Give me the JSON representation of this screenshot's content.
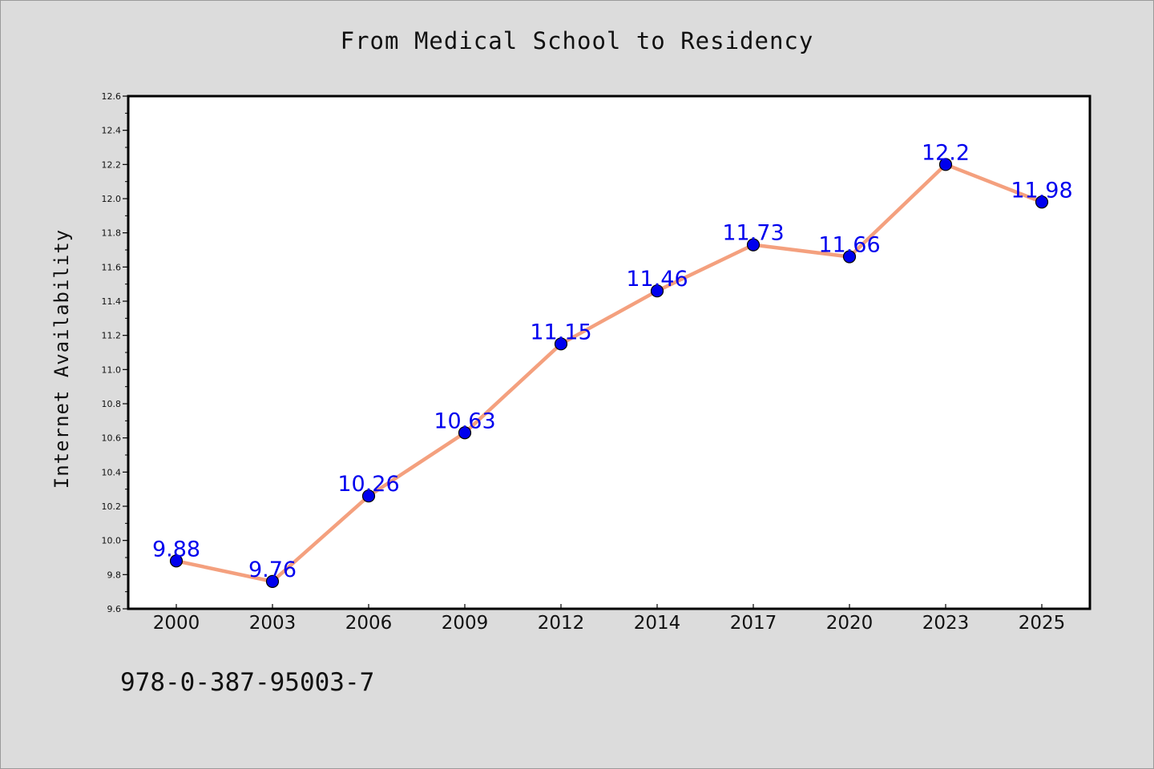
{
  "chart_data": {
    "type": "line",
    "title": "From Medical School to Residency",
    "xlabel": "",
    "ylabel": "Internet Availability",
    "categories": [
      "2000",
      "2003",
      "2006",
      "2009",
      "2012",
      "2014",
      "2017",
      "2020",
      "2023",
      "2025"
    ],
    "series": [
      {
        "values": [
          9.88,
          9.76,
          10.26,
          10.63,
          11.15,
          11.46,
          11.73,
          11.66,
          12.2,
          11.98
        ],
        "labels": [
          "9.88",
          "9.76",
          "10.26",
          "10.63",
          "11.15",
          "11.46",
          "11.73",
          "11.66",
          "12.2",
          "11.98"
        ],
        "line_color": "#f4a07e",
        "marker_color": "#0000ee"
      }
    ],
    "ylim": [
      9.6,
      12.6
    ],
    "yticks": [
      "9.6",
      "9.8",
      "10.0",
      "10.2",
      "10.4",
      "10.6",
      "10.8",
      "11.0",
      "11.2",
      "11.4",
      "11.6",
      "11.8",
      "12.0",
      "12.2",
      "12.4",
      "12.6"
    ],
    "grid": false,
    "legend": "none",
    "plot_background": "#ffffff",
    "figure_background": "#dcdcdc"
  },
  "footer": {
    "code": "978-0-387-95003-7"
  }
}
